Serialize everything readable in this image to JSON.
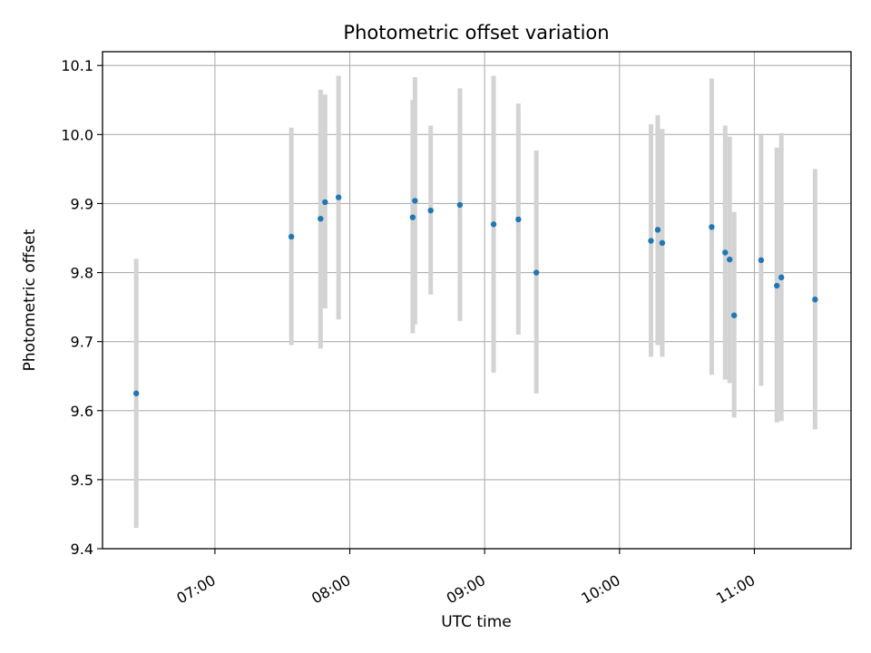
{
  "chart_data": {
    "type": "scatter",
    "title": "Photometric offset variation",
    "xlabel": "UTC time",
    "ylabel": "Photometric offset",
    "grid": true,
    "legend": "none",
    "xlim": [
      "06:10",
      "11:43"
    ],
    "ylim": [
      9.4,
      10.12
    ],
    "x_ticks": [
      "07:00",
      "08:00",
      "09:00",
      "10:00",
      "11:00"
    ],
    "y_ticks": [
      9.4,
      9.5,
      9.6,
      9.7,
      9.8,
      9.9,
      10.0,
      10.1
    ],
    "colors": {
      "point": "#1f77b4",
      "errorbar": "#d3d3d3",
      "grid": "#b0b0b0"
    },
    "points": [
      {
        "x": "06:25",
        "y": 9.625,
        "ylow": 9.43,
        "yhigh": 9.82
      },
      {
        "x": "07:34",
        "y": 9.852,
        "ylow": 9.695,
        "yhigh": 10.01
      },
      {
        "x": "07:47",
        "y": 9.878,
        "ylow": 9.69,
        "yhigh": 10.065
      },
      {
        "x": "07:49",
        "y": 9.902,
        "ylow": 9.748,
        "yhigh": 10.058
      },
      {
        "x": "07:55",
        "y": 9.909,
        "ylow": 9.732,
        "yhigh": 10.085
      },
      {
        "x": "08:28",
        "y": 9.88,
        "ylow": 9.712,
        "yhigh": 10.05
      },
      {
        "x": "08:29",
        "y": 9.904,
        "ylow": 9.725,
        "yhigh": 10.083
      },
      {
        "x": "08:36",
        "y": 9.89,
        "ylow": 9.768,
        "yhigh": 10.013
      },
      {
        "x": "08:49",
        "y": 9.898,
        "ylow": 9.73,
        "yhigh": 10.067
      },
      {
        "x": "09:04",
        "y": 9.87,
        "ylow": 9.655,
        "yhigh": 10.085
      },
      {
        "x": "09:15",
        "y": 9.877,
        "ylow": 9.71,
        "yhigh": 10.045
      },
      {
        "x": "09:23",
        "y": 9.8,
        "ylow": 9.625,
        "yhigh": 9.977
      },
      {
        "x": "10:14",
        "y": 9.846,
        "ylow": 9.678,
        "yhigh": 10.015
      },
      {
        "x": "10:17",
        "y": 9.862,
        "ylow": 9.695,
        "yhigh": 10.028
      },
      {
        "x": "10:19",
        "y": 9.843,
        "ylow": 9.678,
        "yhigh": 10.008
      },
      {
        "x": "10:41",
        "y": 9.866,
        "ylow": 9.652,
        "yhigh": 10.081
      },
      {
        "x": "10:47",
        "y": 9.829,
        "ylow": 9.645,
        "yhigh": 10.013
      },
      {
        "x": "10:49",
        "y": 9.819,
        "ylow": 9.64,
        "yhigh": 9.997
      },
      {
        "x": "10:51",
        "y": 9.738,
        "ylow": 9.59,
        "yhigh": 9.888
      },
      {
        "x": "11:03",
        "y": 9.818,
        "ylow": 9.636,
        "yhigh": 9.999
      },
      {
        "x": "11:10",
        "y": 9.781,
        "ylow": 9.583,
        "yhigh": 9.981
      },
      {
        "x": "11:12",
        "y": 9.793,
        "ylow": 9.585,
        "yhigh": 10.002
      },
      {
        "x": "11:27",
        "y": 9.761,
        "ylow": 9.573,
        "yhigh": 9.95
      }
    ]
  }
}
